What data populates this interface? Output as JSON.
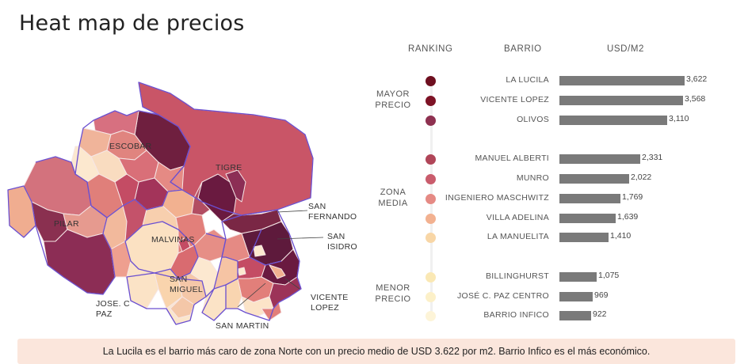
{
  "title": "Heat map de precios",
  "columns": {
    "ranking": "RANKING",
    "barrio": "BARRIO",
    "usd": "USD/M2"
  },
  "groups": {
    "high": [
      "MAYOR",
      "PRECIO"
    ],
    "mid": [
      "ZONA",
      "MEDIA"
    ],
    "low": [
      "MENOR",
      "PRECIO"
    ]
  },
  "map_labels": {
    "escobar": "ESCOBAR",
    "tigre": "TIGRE",
    "pilar": "PILAR",
    "malvinas": "MALVINAS",
    "san_miguel": [
      "SAN",
      "MIGUEL"
    ],
    "jose_c_paz": [
      "JOSE. C",
      "PAZ"
    ],
    "san_martin": "SAN MARTIN",
    "vicente_lopez": [
      "VICENTE",
      "LOPEZ"
    ],
    "san_isidro": [
      "SAN",
      "ISIDRO"
    ],
    "san_fernando": [
      "SAN",
      "FERNANDO"
    ]
  },
  "chart_data": {
    "type": "bar",
    "categories": [
      "LA LUCILA",
      "VICENTE LOPEZ",
      "OLIVOS",
      "MANUEL ALBERTI",
      "MUNRO",
      "INGENIERO MASCHWITZ",
      "VILLA ADELINA",
      "LA MANUELITA",
      "BILLINGHURST",
      "JOSÉ C. PAZ CENTRO",
      "BARRIO INFICO"
    ],
    "values": [
      3622,
      3568,
      3110,
      2331,
      2022,
      1769,
      1639,
      1410,
      1075,
      969,
      922
    ],
    "labels": [
      "3,622",
      "3,568",
      "3,110",
      "2,331",
      "2,022",
      "1,769",
      "1,639",
      "1,410",
      "1,075",
      "969",
      "922"
    ],
    "colors": [
      "#6e0f1f",
      "#7d1225",
      "#8e3150",
      "#b04558",
      "#c95c6c",
      "#e58a84",
      "#f2b190",
      "#f8d6a6",
      "#fae8b4",
      "#fcf0c8",
      "#fdf4d8"
    ],
    "xlim": [
      0,
      3622
    ]
  },
  "footer": "La Lucila es el barrio más caro de zona Norte con un precio medio de USD 3.622 por m2. Barrio Infico es el más económico."
}
